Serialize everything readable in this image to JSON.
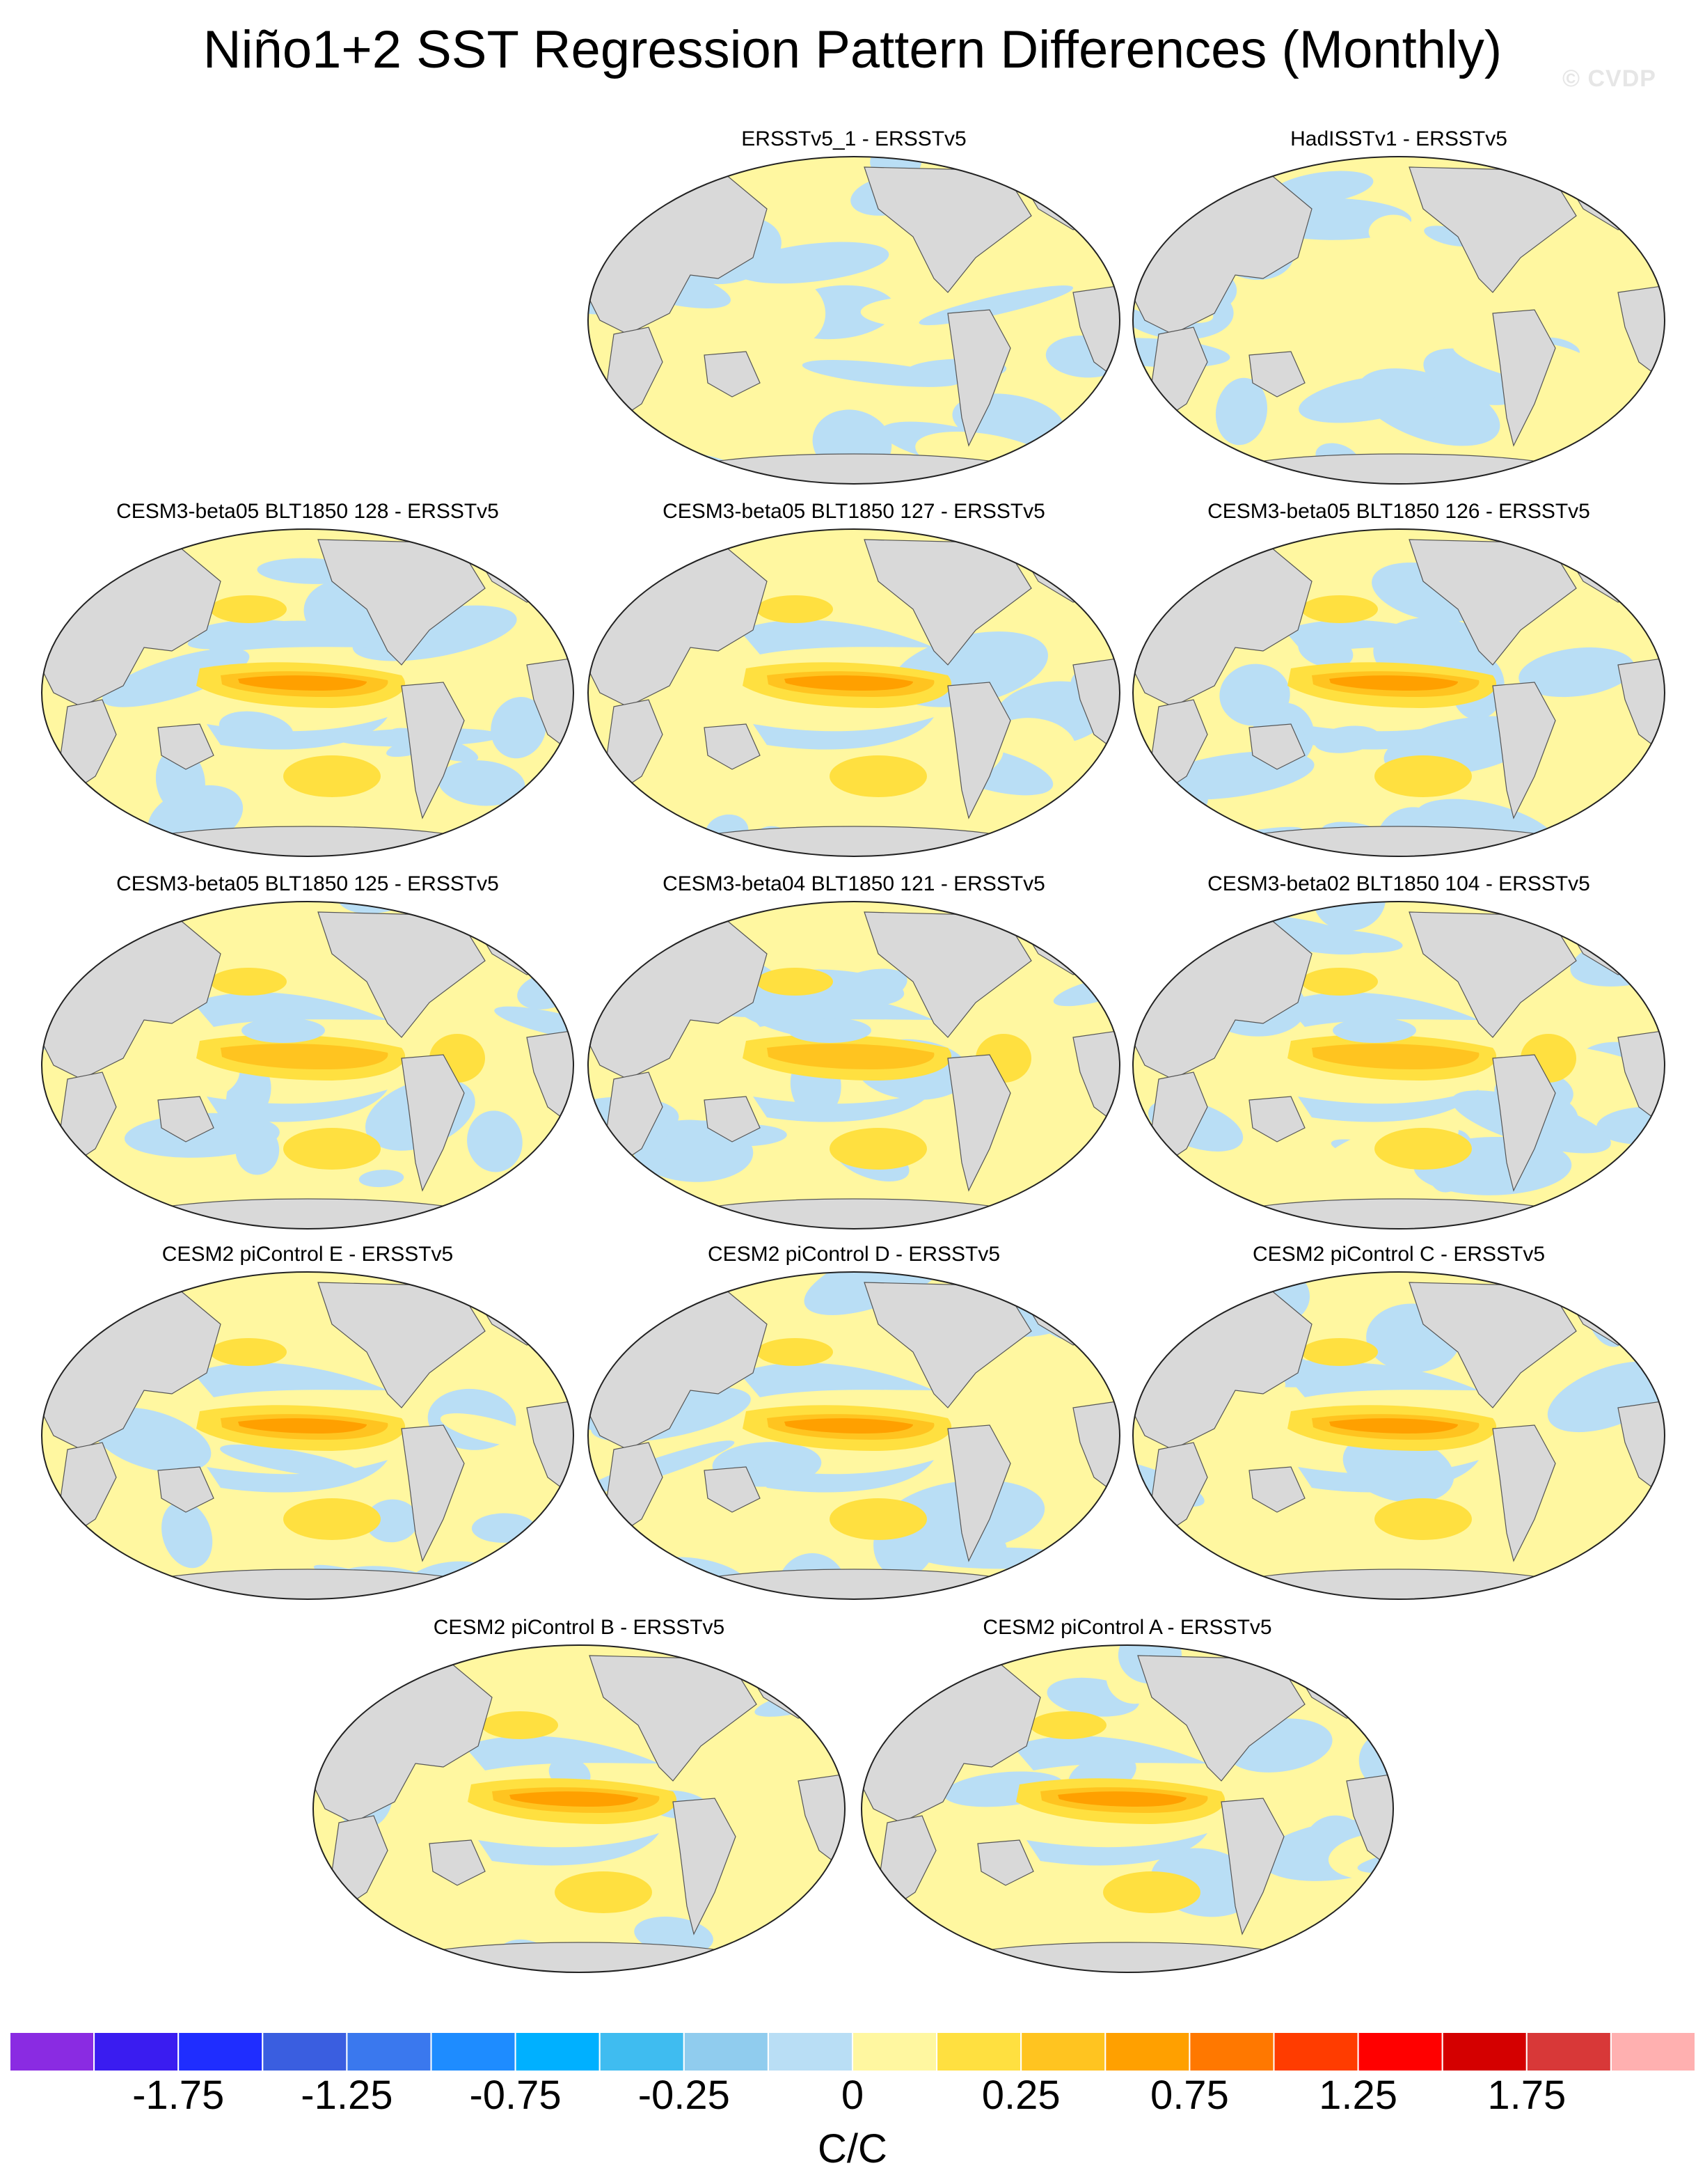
{
  "title": "Niño1+2 SST Regression Pattern Differences (Monthly)",
  "watermark": "© CVDP",
  "panels": [
    {
      "title": "ERSSTv5_1 - ERSSTv5",
      "pattern": "weak"
    },
    {
      "title": "HadISSTv1 - ERSSTv5",
      "pattern": "weak"
    },
    {
      "title": "CESM3-beta05 BLT1850 128 - ERSSTv5",
      "pattern": "enso"
    },
    {
      "title": "CESM3-beta05 BLT1850 127 - ERSSTv5",
      "pattern": "enso"
    },
    {
      "title": "CESM3-beta05 BLT1850 126 - ERSSTv5",
      "pattern": "enso"
    },
    {
      "title": "CESM3-beta05 BLT1850 125 - ERSSTv5",
      "pattern": "mixed"
    },
    {
      "title": "CESM3-beta04 BLT1850 121 - ERSSTv5",
      "pattern": "mixed"
    },
    {
      "title": "CESM3-beta02 BLT1850 104 - ERSSTv5",
      "pattern": "mixed"
    },
    {
      "title": "CESM2 piControl E - ERSSTv5",
      "pattern": "enso"
    },
    {
      "title": "CESM2 piControl D - ERSSTv5",
      "pattern": "enso"
    },
    {
      "title": "CESM2 piControl C - ERSSTv5",
      "pattern": "enso"
    },
    {
      "title": "CESM2 piControl B - ERSSTv5",
      "pattern": "enso"
    },
    {
      "title": "CESM2 piControl A - ERSSTv5",
      "pattern": "enso"
    }
  ],
  "colorbar": {
    "colors": [
      "#8a2be2",
      "#3a1cf0",
      "#1f2dff",
      "#3a5ee0",
      "#3a78ee",
      "#1e8cff",
      "#00b0ff",
      "#3fbcf0",
      "#90ccee",
      "#b9def5",
      "#fff7a0",
      "#ffe040",
      "#ffc420",
      "#ffa000",
      "#ff7800",
      "#ff3c00",
      "#ff0000",
      "#d40000",
      "#d83838",
      "#ffb0b0"
    ],
    "tick_labels": [
      "-1.75",
      "-1.25",
      "-0.75",
      "-0.25",
      "0",
      "0.25",
      "0.75",
      "1.25",
      "1.75"
    ],
    "units": "C/C"
  },
  "map_colors": {
    "land": "#d9d9d9",
    "coast": "#555555",
    "neutral_pos": "#fff7a0",
    "neutral_neg": "#b9def5"
  }
}
